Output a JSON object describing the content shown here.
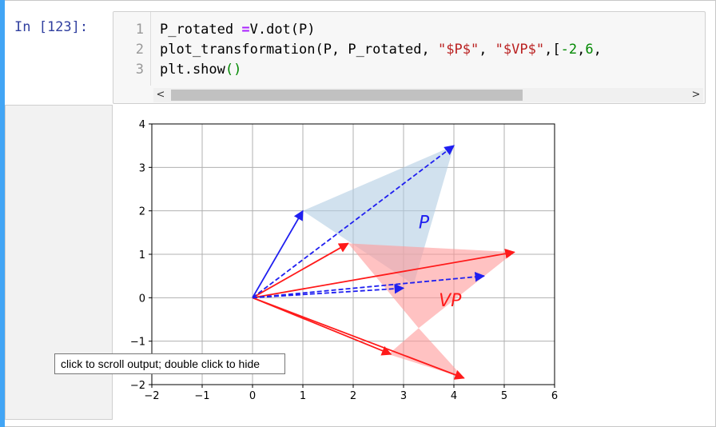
{
  "cell": {
    "prompt": "In [123]:",
    "lines": [
      {
        "num": "1",
        "parts": [
          {
            "t": "P_rotated ",
            "c": ""
          },
          {
            "t": "=",
            "c": "tok-op"
          },
          {
            "t": "V.dot(P)",
            "c": ""
          }
        ]
      },
      {
        "num": "2",
        "parts": [
          {
            "t": "plot_transformation(P, P_rotated, ",
            "c": ""
          },
          {
            "t": "\"$P$\"",
            "c": "tok-str"
          },
          {
            "t": ", ",
            "c": ""
          },
          {
            "t": "\"$VP$\"",
            "c": "tok-str"
          },
          {
            "t": ",[",
            "c": ""
          },
          {
            "t": "-2",
            "c": "tok-num"
          },
          {
            "t": ",",
            "c": ""
          },
          {
            "t": "6",
            "c": "tok-num"
          },
          {
            "t": ",",
            "c": ""
          }
        ]
      },
      {
        "num": "3",
        "parts": [
          {
            "t": "plt.show",
            "c": ""
          },
          {
            "t": "()",
            "c": "tok-paren"
          }
        ]
      }
    ],
    "scroll_left": "<",
    "scroll_right": ">"
  },
  "output": {
    "tooltip": "click to scroll output; double click to hide"
  },
  "chart_data": {
    "type": "scatter",
    "xlim": [
      -2,
      6
    ],
    "ylim": [
      -2,
      4
    ],
    "xticks": [
      "-2",
      "-1",
      "0",
      "1",
      "2",
      "3",
      "4",
      "5",
      "6"
    ],
    "yticks": [
      "-2",
      "-1",
      "0",
      "1",
      "2",
      "3",
      "4"
    ],
    "grid": true,
    "series": [
      {
        "name": "P",
        "color": "#1f1ff0",
        "fill": "#b3cde3",
        "points": [
          [
            1,
            2
          ],
          [
            4,
            3.5
          ],
          [
            3.2,
            0.3
          ]
        ]
      },
      {
        "name": "VP",
        "color": "#ff1a1a",
        "fill": "#ff9999",
        "points": [
          [
            1.9,
            1.25
          ],
          [
            5.2,
            1.05
          ],
          [
            2.65,
            -1.25
          ],
          [
            4.2,
            -1.8
          ],
          [
            4.6,
            0.5
          ]
        ]
      }
    ],
    "solid_arrows": [
      {
        "to": [
          1,
          2
        ],
        "color": "#1f1ff0"
      },
      {
        "to": [
          1.9,
          1.25
        ],
        "color": "#ff1a1a"
      },
      {
        "to": [
          5.2,
          1.05
        ],
        "color": "#ff1a1a"
      },
      {
        "to": [
          2.75,
          -1.3
        ],
        "color": "#ff1a1a"
      },
      {
        "to": [
          4.2,
          -1.85
        ],
        "color": "#ff1a1a"
      }
    ],
    "dashed_arrows": [
      {
        "to": [
          4,
          3.5
        ],
        "color": "#1f1ff0"
      },
      {
        "to": [
          3.0,
          0.22
        ],
        "color": "#1f1ff0"
      },
      {
        "to": [
          4.6,
          0.5
        ],
        "color": "#1f1ff0"
      }
    ],
    "polygons": [
      {
        "name": "P",
        "color": "#b3cde3",
        "points": [
          [
            1,
            2
          ],
          [
            4,
            3.5
          ],
          [
            3.2,
            0.3
          ]
        ]
      },
      {
        "name": "VP-top",
        "color": "#ff9999",
        "points": [
          [
            1.9,
            1.25
          ],
          [
            5.2,
            1.05
          ],
          [
            3.3,
            -0.7
          ]
        ]
      },
      {
        "name": "VP-bottom",
        "color": "#ff9999",
        "points": [
          [
            3.3,
            -0.7
          ],
          [
            2.7,
            -1.3
          ],
          [
            4.2,
            -1.85
          ]
        ]
      }
    ],
    "labels": [
      {
        "text": "P",
        "at": [
          3.3,
          1.6
        ],
        "color": "#1f1ff0"
      },
      {
        "text": "VP",
        "at": [
          3.7,
          -0.2
        ],
        "color": "#ff1a1a"
      }
    ]
  }
}
